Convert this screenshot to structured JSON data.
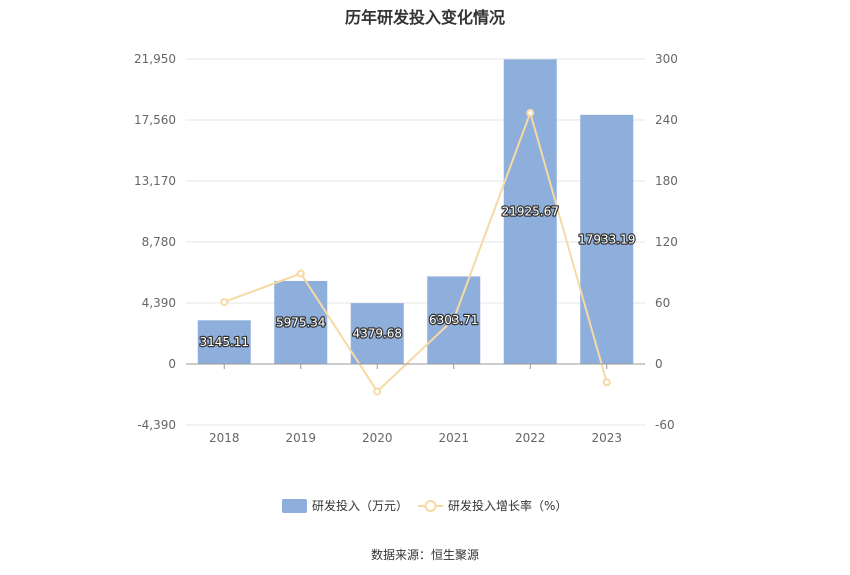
{
  "title": "历年研发投入变化情况",
  "source": "数据来源：恒生聚源",
  "colors": {
    "bar": "#8eaedc",
    "line": "#f7d9a4",
    "grid": "#e6e6e6",
    "axis": "#999999"
  },
  "chart_data": {
    "type": "bar",
    "title": "历年研发投入变化情况",
    "categories": [
      "2018",
      "2019",
      "2020",
      "2021",
      "2022",
      "2023"
    ],
    "series": [
      {
        "name": "研发投入（万元）",
        "type": "bar",
        "axis": "left",
        "values": [
          3145.11,
          5975.34,
          4379.68,
          6303.71,
          21925.67,
          17933.19
        ],
        "labels": [
          "3145.11",
          "5975.34",
          "4379.68",
          "6303.71",
          "21925.67",
          "17933.19"
        ]
      },
      {
        "name": "研发投入增长率（%）",
        "type": "line",
        "axis": "right",
        "values": [
          61,
          89,
          -27,
          44,
          247,
          -18
        ]
      }
    ],
    "y_left": {
      "ticks": [
        "21,950",
        "17,560",
        "13,170",
        "8,780",
        "4,390",
        "0",
        "-4,390"
      ],
      "tick_values": [
        21950,
        17560,
        13170,
        8780,
        4390,
        0,
        -4390
      ],
      "range": [
        -4390,
        21950
      ]
    },
    "y_right": {
      "ticks": [
        "300",
        "240",
        "180",
        "120",
        "60",
        "0",
        "-60"
      ],
      "tick_values": [
        300,
        240,
        180,
        120,
        60,
        0,
        -60
      ],
      "range": [
        -60,
        300
      ]
    },
    "grid": true,
    "legend": "bottom"
  }
}
